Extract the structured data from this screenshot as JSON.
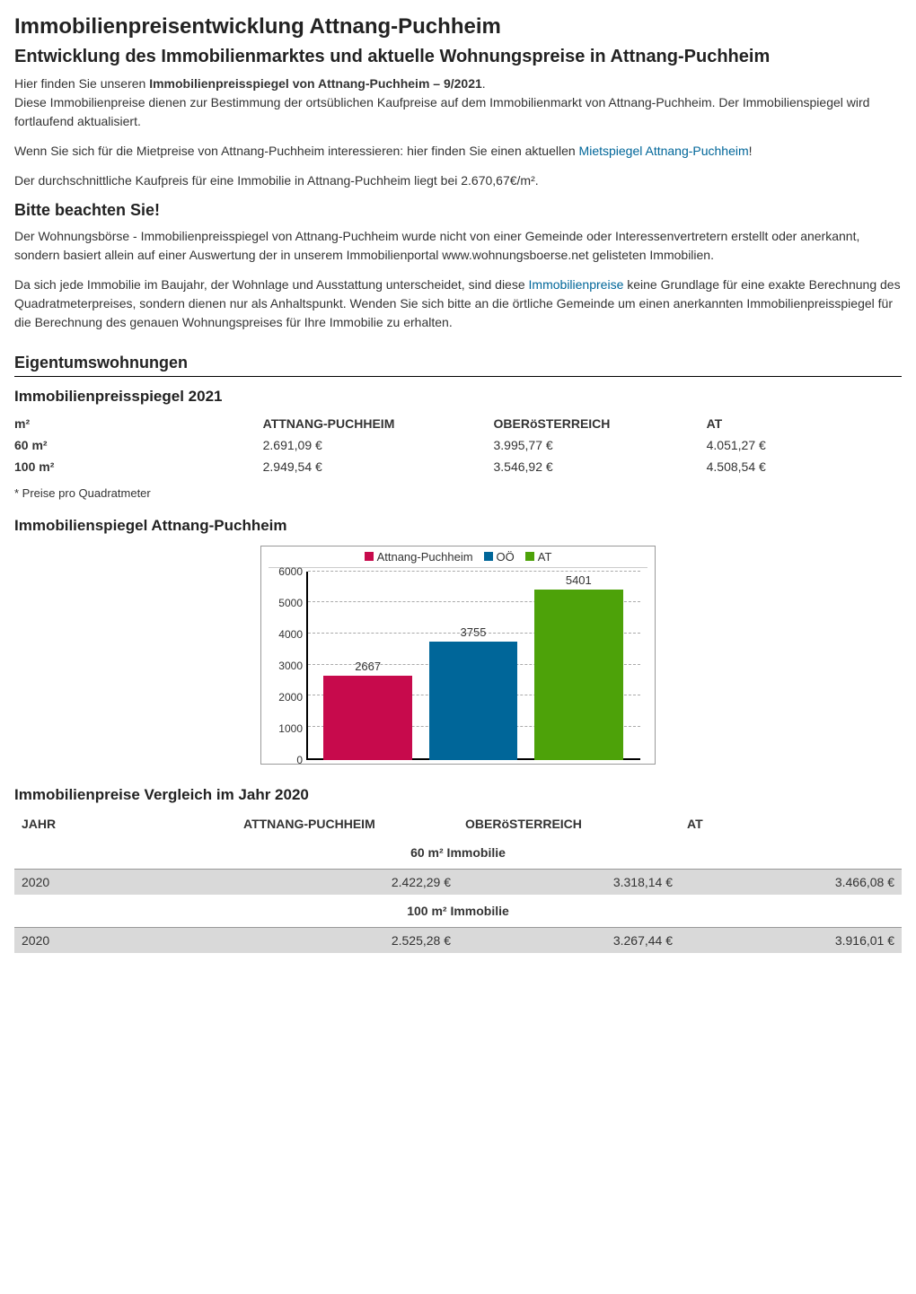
{
  "page_title": "Immobilienpreisentwicklung Attnang-Puchheim",
  "subtitle": "Entwicklung des Immobilienmarktes und aktuelle Wohnungspreise in Attnang-Puchheim",
  "intro": {
    "line1_prefix": "Hier finden Sie unseren ",
    "line1_bold": "Immobilienpreisspiegel von Attnang-Puchheim – 9/2021",
    "line1_suffix": ".",
    "line2": "Diese Immobilienpreise dienen zur Bestimmung der ortsüblichen Kaufpreise auf dem Immobilienmarkt von Attnang-Puchheim. Der Immobilienspiegel wird fortlaufend aktualisiert.",
    "line3_prefix": "Wenn Sie sich für die Mietpreise von Attnang-Puchheim interessieren: hier finden Sie einen aktuellen ",
    "line3_link": "Mietspiegel Attnang-Puchheim",
    "line3_suffix": "!",
    "line4": "Der durchschnittliche Kaufpreis für eine Immobilie in Attnang-Puchheim liegt bei 2.670,67€/m²."
  },
  "notice": {
    "heading": "Bitte beachten Sie!",
    "p1": "Der Wohnungsbörse - Immobilienpreisspiegel von Attnang-Puchheim wurde nicht von einer Gemeinde oder Interessenvertretern erstellt oder anerkannt, sondern basiert allein auf einer Auswertung der in unserem Immobilienportal www.wohnungsboerse.net gelisteten Immobilien.",
    "p2_prefix": "Da sich jede Immobilie im Baujahr, der Wohnlage und Ausstattung unterscheidet, sind diese ",
    "p2_link": "Immobilienpreise",
    "p2_suffix": " keine Grundlage für eine exakte Berechnung des Quadratmeterpreises, sondern dienen nur als Anhaltspunkt. Wenden Sie sich bitte an die örtliche Gemeinde um einen anerkannten Immobilienpreisspiegel für die Berechnung des genauen Wohnungspreises für Ihre Immobilie zu erhalten."
  },
  "section_eigentum": "Eigentumswohnungen",
  "table2021": {
    "heading": "Immobilienpreisspiegel 2021",
    "headers": [
      "m²",
      "ATTNANG-PUCHHEIM",
      "OBERöSTERREICH",
      "AT"
    ],
    "rows": [
      {
        "key": "60 m²",
        "c1": "2.691,09 €",
        "c2": "3.995,77 €",
        "c3": "4.051,27 €"
      },
      {
        "key": "100 m²",
        "c1": "2.949,54 €",
        "c2": "3.546,92 €",
        "c3": "4.508,54 €"
      }
    ],
    "footnote": "* Preise pro Quadratmeter"
  },
  "chart": {
    "heading": "Immobilienspiegel Attnang-Puchheim",
    "type": "bar",
    "legend": [
      "Attnang-Puchheim",
      "OÖ",
      "AT"
    ],
    "colors": [
      "#c70a4c",
      "#006699",
      "#4da209"
    ],
    "values": [
      2667,
      3755,
      5401
    ],
    "labels": [
      "2667",
      "3755",
      "5401"
    ],
    "y_max": 6000,
    "y_ticks": [
      0,
      1000,
      2000,
      3000,
      4000,
      5000,
      6000
    ],
    "background": "#ffffff",
    "grid_color": "#aaaaaa",
    "axis_color": "#000000",
    "label_fontsize": 13
  },
  "cmp": {
    "heading": "Immobilienpreise Vergleich im Jahr 2020",
    "headers": [
      "JAHR",
      "ATTNANG-PUCHHEIM",
      "OBERöSTERREICH",
      "AT"
    ],
    "groups": [
      {
        "caption": "60 m² Immobilie",
        "rows": [
          {
            "year": "2020",
            "c1": "2.422,29 €",
            "c2": "3.318,14 €",
            "c3": "3.466,08 €"
          }
        ]
      },
      {
        "caption": "100 m² Immobilie",
        "rows": [
          {
            "year": "2020",
            "c1": "2.525,28 €",
            "c2": "3.267,44 €",
            "c3": "3.916,01 €"
          }
        ]
      }
    ]
  }
}
